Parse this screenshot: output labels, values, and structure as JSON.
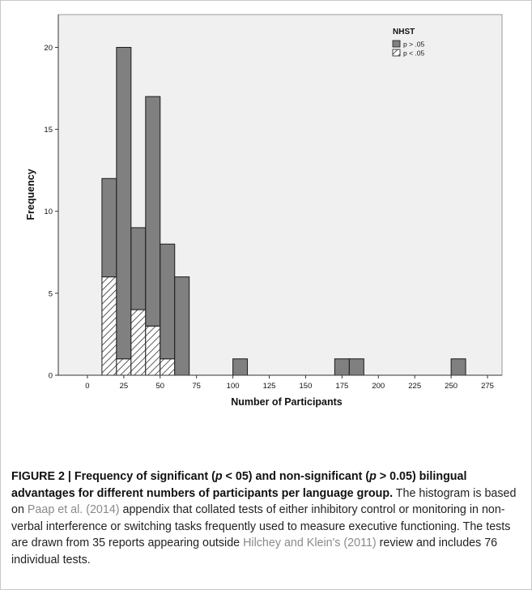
{
  "chart_data": {
    "type": "bar",
    "stacked": true,
    "xlabel": "Number of Participants",
    "ylabel": "Frequency",
    "xlim": [
      -20,
      285
    ],
    "ylim": [
      0,
      22
    ],
    "xticks": [
      0,
      25,
      50,
      75,
      100,
      125,
      150,
      175,
      200,
      225,
      250,
      275
    ],
    "yticks": [
      0,
      5,
      10,
      15,
      20
    ],
    "bin_width": 10,
    "bins": [
      {
        "x0": 10,
        "x1": 20,
        "p_gt": 6,
        "p_lt": 6
      },
      {
        "x0": 20,
        "x1": 30,
        "p_gt": 19,
        "p_lt": 1
      },
      {
        "x0": 30,
        "x1": 40,
        "p_gt": 5,
        "p_lt": 4
      },
      {
        "x0": 40,
        "x1": 50,
        "p_gt": 14,
        "p_lt": 3
      },
      {
        "x0": 50,
        "x1": 60,
        "p_gt": 7,
        "p_lt": 1
      },
      {
        "x0": 60,
        "x1": 70,
        "p_gt": 6,
        "p_lt": 0
      },
      {
        "x0": 100,
        "x1": 110,
        "p_gt": 1,
        "p_lt": 0
      },
      {
        "x0": 170,
        "x1": 180,
        "p_gt": 1,
        "p_lt": 0
      },
      {
        "x0": 180,
        "x1": 190,
        "p_gt": 1,
        "p_lt": 0
      },
      {
        "x0": 250,
        "x1": 260,
        "p_gt": 1,
        "p_lt": 0
      }
    ],
    "legend": {
      "title": "NHST",
      "placement": "top-right",
      "entries": [
        "p > .05",
        "p < .05"
      ]
    },
    "colors": {
      "p_gt": "#808080",
      "p_lt_fill": "#ffffff",
      "p_lt_hatch": "#333333",
      "plot_bg": "#f0f0f0",
      "bar_stroke": "#1a1a1a"
    }
  },
  "caption": {
    "title_1": "FIGURE 2 | Frequency of significant (",
    "p1": "p",
    "title_2": " < 05) and non-significant (",
    "p2": "p",
    "title_3": " > 0.05) bilingual advantages for different numbers of participants per language group.",
    "text_1": " The histogram is based on ",
    "cite_1": "Paap et al. (2014)",
    "text_2": " appendix that collated tests of either inhibitory control or monitoring in non-verbal interference or switching tasks frequently used to measure executive functioning. The tests are drawn from 35 reports appearing outside ",
    "cite_2": "Hilchey and Klein's (2011)",
    "text_3": " review and includes 76 individual tests."
  }
}
